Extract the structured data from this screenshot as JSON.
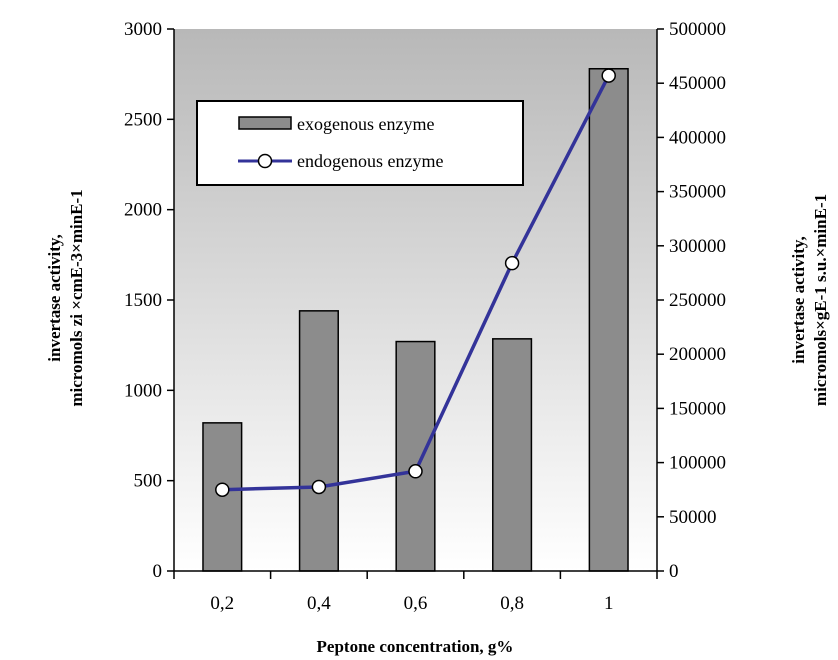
{
  "chart_data": {
    "type": "bar",
    "categories": [
      "0,2",
      "0,4",
      "0,6",
      "0,8",
      "1"
    ],
    "xlabel": "Peptone concentration, g%",
    "ylabel_left": [
      "invertase activity,",
      "micromols zi ×cmE-3×minE-1"
    ],
    "ylabel_right": [
      "invertase activity,",
      "micromols×gE-1 s.u.×minE-1"
    ],
    "ylim_left": [
      0,
      3000
    ],
    "ylim_right": [
      0,
      500000
    ],
    "yticks_left": [
      "0",
      "500",
      "1000",
      "1500",
      "2000",
      "2500",
      "3000"
    ],
    "yticks_right": [
      "0",
      "50000",
      "100000",
      "150000",
      "200000",
      "250000",
      "300000",
      "350000",
      "400000",
      "450000",
      "500000"
    ],
    "legend_position": "upper-left",
    "series": [
      {
        "name": "exogenous enzyme",
        "type": "bar",
        "axis": "left",
        "values": [
          820,
          1440,
          1270,
          1285,
          2780
        ],
        "color": "#8c8c8c"
      },
      {
        "name": "endogenous enzyme",
        "type": "line",
        "axis": "right",
        "values": [
          75000,
          77500,
          92000,
          284000,
          457000
        ],
        "color": "#333399"
      }
    ]
  }
}
